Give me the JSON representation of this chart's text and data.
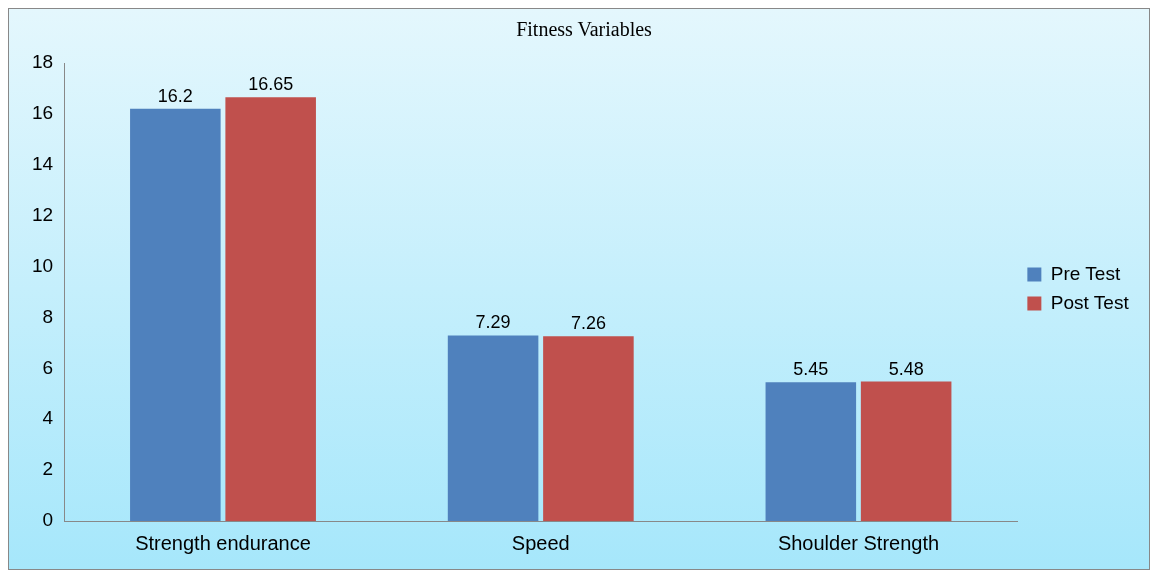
{
  "chart_data": {
    "type": "bar",
    "title": "Fitness Variables",
    "categories": [
      "Strength endurance",
      "Speed",
      "Shoulder Strength"
    ],
    "series": [
      {
        "name": "Pre Test",
        "color": "#4f81bd",
        "values": [
          16.2,
          7.29,
          5.45
        ]
      },
      {
        "name": "Post Test",
        "color": "#c0504d",
        "values": [
          16.65,
          7.26,
          5.48
        ]
      }
    ],
    "ylim": [
      0,
      18
    ],
    "yticks": [
      0,
      2,
      4,
      6,
      8,
      10,
      12,
      14,
      16,
      18
    ],
    "grid": false,
    "legend": "right",
    "data_labels": true
  }
}
